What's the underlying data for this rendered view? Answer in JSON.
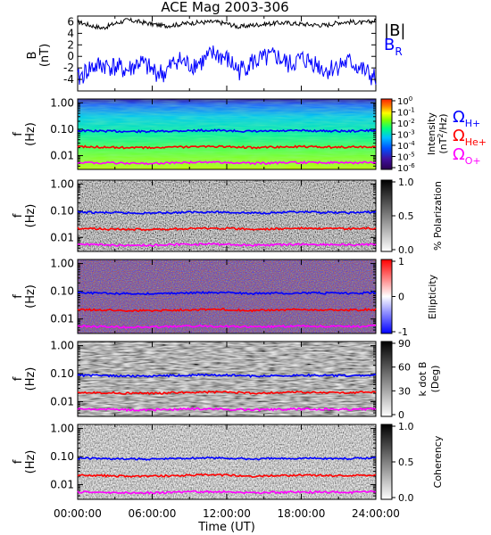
{
  "title": "ACE Mag 2003-306",
  "xlabel": "Time (UT)",
  "x_ticks": [
    "00:00:00",
    "06:00:00",
    "12:00:00",
    "18:00:00",
    "24:00:00"
  ],
  "colors": {
    "B": "#000000",
    "BR": "#0000ff",
    "H": "#0000ff",
    "He": "#ff0000",
    "O": "#ff00ff"
  },
  "chart_data": [
    {
      "type": "line",
      "ylabel": "B",
      "ylabel_unit": "(nT)",
      "y_ticks": [
        "6",
        "4",
        "2",
        "0",
        "-2",
        "-4"
      ],
      "ylim": [
        -6,
        7
      ],
      "xlim": [
        0,
        24
      ],
      "legend": [
        "|B|",
        "B"
      ],
      "legend_sub": "R",
      "series": [
        {
          "name": "|B|",
          "x": [
            0,
            1,
            2,
            3,
            4,
            5,
            6,
            7,
            8,
            9,
            10,
            11,
            12,
            13,
            14,
            15,
            16,
            17,
            18,
            19,
            20,
            21,
            22,
            23,
            24
          ],
          "values": [
            6.0,
            5.4,
            4.9,
            5.7,
            6.3,
            6.0,
            5.6,
            5.3,
            5.5,
            5.8,
            5.9,
            6.0,
            5.7,
            5.1,
            5.4,
            5.6,
            5.8,
            5.8,
            5.6,
            5.5,
            5.4,
            5.9,
            6.0,
            5.8,
            6.2
          ]
        },
        {
          "name": "B",
          "name_sub": "R",
          "x": [
            0,
            1,
            2,
            3,
            4,
            5,
            6,
            7,
            8,
            9,
            10,
            11,
            12,
            13,
            14,
            15,
            16,
            17,
            18,
            19,
            20,
            21,
            22,
            23,
            24
          ],
          "values": [
            -4.0,
            -2.0,
            -1.5,
            -1.8,
            -2.5,
            -1.0,
            -2.5,
            -3.0,
            -0.5,
            -1.5,
            -1.0,
            0.5,
            -0.5,
            -2.5,
            -1.0,
            -0.5,
            0.0,
            -1.5,
            -0.5,
            -1.0,
            -2.5,
            -1.5,
            -1.0,
            -2.5,
            -4.0
          ]
        }
      ]
    },
    {
      "type": "heatmap",
      "ylabel": "f",
      "ylabel_unit": "(Hz)",
      "y_ticks": [
        "1.00",
        "0.10",
        "0.01"
      ],
      "yscale": "log",
      "ylim": [
        0.003,
        1.4
      ],
      "colorbar_label": "Intensity",
      "colorbar_unit": "(nT",
      "colorbar_unit_sup": "2",
      "colorbar_unit_end": "/Hz)",
      "colorbar_ticks": [
        {
          "base": "10",
          "exp": "0"
        },
        {
          "base": "10",
          "exp": "-1"
        },
        {
          "base": "10",
          "exp": "-2"
        },
        {
          "base": "10",
          "exp": "-3"
        },
        {
          "base": "10",
          "exp": "-4"
        },
        {
          "base": "10",
          "exp": "-5"
        },
        {
          "base": "10",
          "exp": "-6"
        }
      ],
      "legend": [
        {
          "symbol": "Ω",
          "sub": "H+",
          "color": "#0000ff"
        },
        {
          "symbol": "Ω",
          "sub": "He+",
          "color": "#ff0000"
        },
        {
          "symbol": "Ω",
          "sub": "O+",
          "color": "#ff00ff"
        }
      ]
    },
    {
      "type": "heatmap",
      "ylabel": "f",
      "ylabel_unit": "(Hz)",
      "y_ticks": [
        "1.00",
        "0.10",
        "0.01"
      ],
      "yscale": "log",
      "ylim": [
        0.003,
        1.4
      ],
      "colorbar_label": "% Polarization",
      "colorbar_ticks": [
        "1.0",
        "0.5",
        "0.0"
      ]
    },
    {
      "type": "heatmap",
      "ylabel": "f",
      "ylabel_unit": "(Hz)",
      "y_ticks": [
        "1.00",
        "0.10",
        "0.01"
      ],
      "yscale": "log",
      "ylim": [
        0.003,
        1.4
      ],
      "colorbar_label": "Ellipticity",
      "colorbar_ticks": [
        "1",
        "0",
        "-1"
      ]
    },
    {
      "type": "heatmap",
      "ylabel": "f",
      "ylabel_unit": "(Hz)",
      "y_ticks": [
        "1.00",
        "0.10",
        "0.01"
      ],
      "yscale": "log",
      "ylim": [
        0.003,
        1.4
      ],
      "colorbar_label": "k dot B",
      "colorbar_unit": "(Deg)",
      "colorbar_ticks": [
        "90",
        "60",
        "30",
        "0"
      ]
    },
    {
      "type": "heatmap",
      "ylabel": "f",
      "ylabel_unit": "(Hz)",
      "y_ticks": [
        "1.00",
        "0.10",
        "0.01"
      ],
      "yscale": "log",
      "ylim": [
        0.003,
        1.4
      ],
      "colorbar_label": "Coherency",
      "colorbar_ticks": [
        "1.0",
        "0.5",
        "0.0"
      ]
    }
  ],
  "gyro_lines": {
    "x": [
      0,
      2,
      4,
      6,
      8,
      10,
      12,
      14,
      16,
      18,
      20,
      22,
      24
    ],
    "H": [
      0.088,
      0.085,
      0.082,
      0.082,
      0.086,
      0.09,
      0.088,
      0.082,
      0.085,
      0.088,
      0.086,
      0.084,
      0.09
    ],
    "He": [
      0.022,
      0.021,
      0.02,
      0.02,
      0.021,
      0.022,
      0.022,
      0.02,
      0.021,
      0.022,
      0.021,
      0.021,
      0.022
    ],
    "O": [
      0.0055,
      0.0053,
      0.0051,
      0.0051,
      0.0054,
      0.0056,
      0.0055,
      0.0051,
      0.0053,
      0.0055,
      0.0054,
      0.0053,
      0.0056
    ]
  }
}
